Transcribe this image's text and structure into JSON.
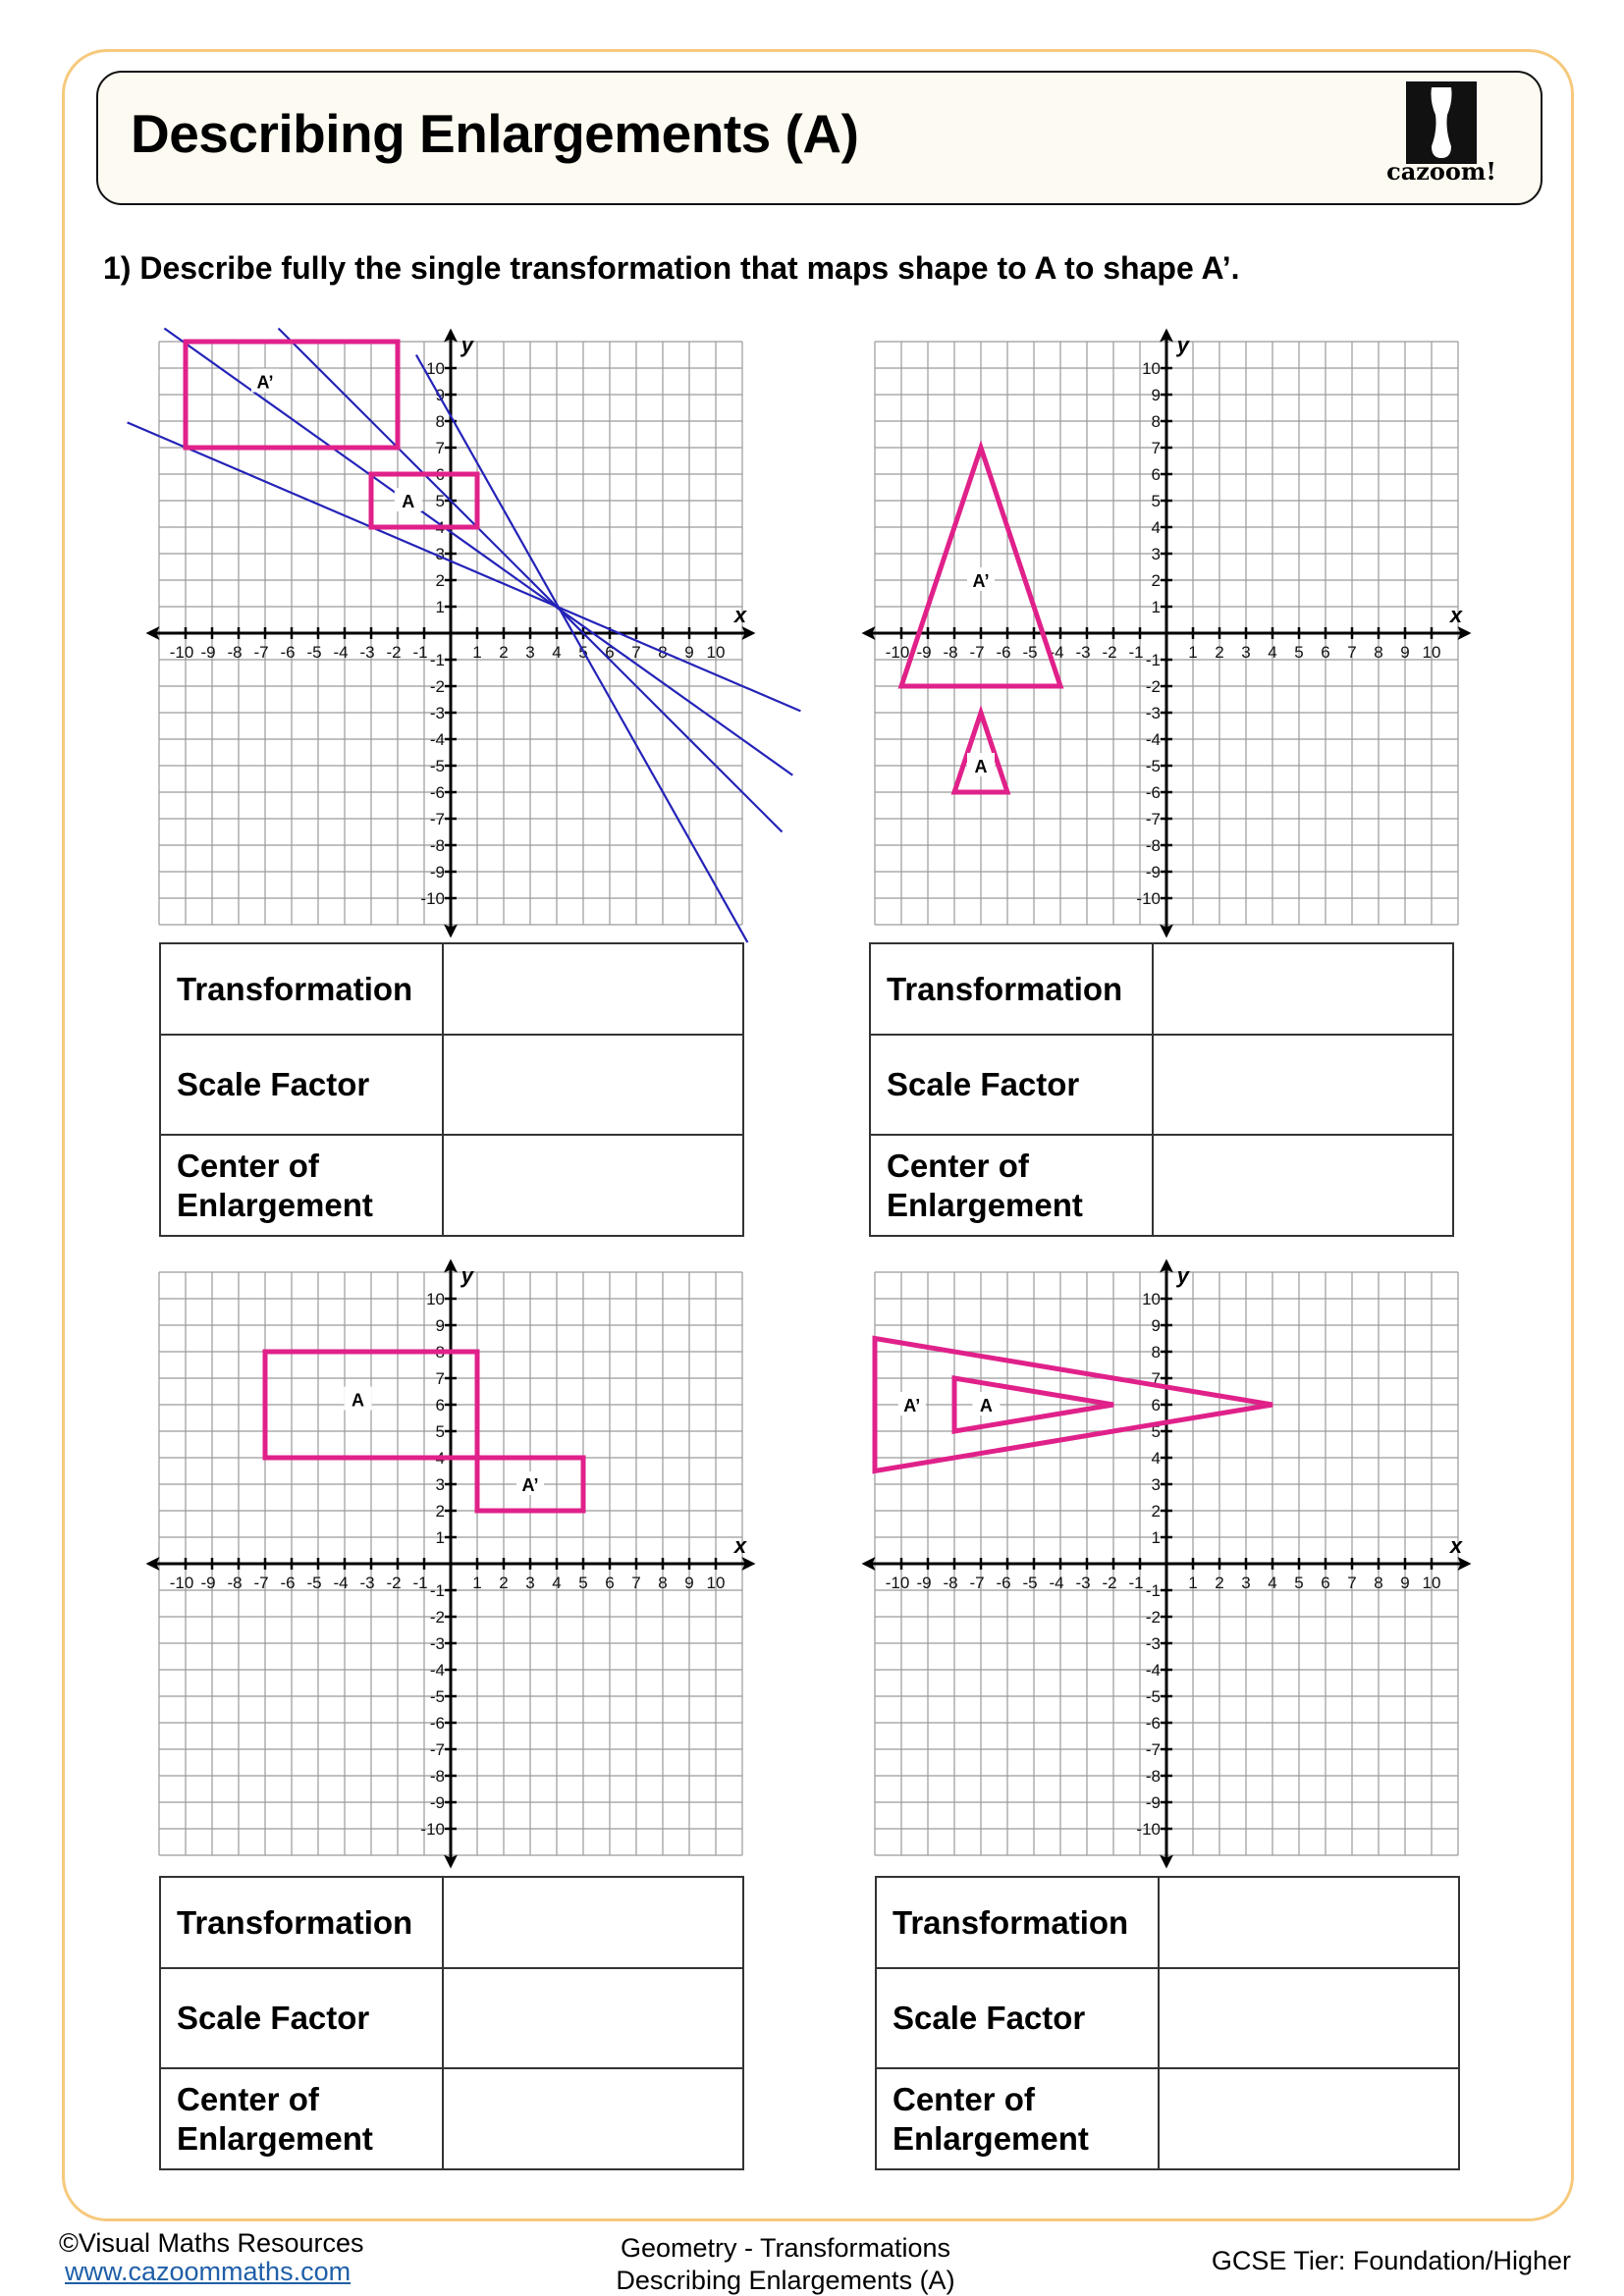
{
  "header": {
    "title": "Describing Enlargements (A)",
    "logo_text": "cazoom!"
  },
  "question": "1)  Describe fully the single transformation that maps shape to A to shape A’.",
  "colors": {
    "shape": "#e0218a",
    "construction_line": "#2323b8",
    "border": "#f6c97c",
    "header_bg": "#fdfaf1"
  },
  "chart_data": [
    {
      "type": "coordinate-grid",
      "xlim": [
        -11,
        11
      ],
      "ylim": [
        -11,
        11
      ],
      "grid": true,
      "axis_labels": {
        "x": "x",
        "y": "y"
      },
      "ticks": [
        -10,
        -9,
        -8,
        -7,
        -6,
        -5,
        -4,
        -3,
        -2,
        -1,
        1,
        2,
        3,
        4,
        5,
        6,
        7,
        8,
        9,
        10
      ],
      "shapes": [
        {
          "name": "A",
          "vertices": [
            [
              -3,
              4
            ],
            [
              1,
              4
            ],
            [
              1,
              6
            ],
            [
              -3,
              6
            ]
          ],
          "label_at": [
            -1.6,
            5
          ]
        },
        {
          "name": "A’",
          "vertices": [
            [
              -10,
              7
            ],
            [
              -2,
              7
            ],
            [
              -2,
              11
            ],
            [
              -10,
              11
            ]
          ],
          "label_at": [
            -7,
            9.5
          ]
        }
      ],
      "construction_lines": [
        {
          "from": [
            -12.2,
            7.95
          ],
          "to": [
            13.2,
            -2.94
          ]
        },
        {
          "from": [
            -10.8,
            11.5
          ],
          "to": [
            12.9,
            -5.36
          ]
        },
        {
          "from": [
            -6.5,
            11.5
          ],
          "to": [
            12.5,
            -7.5
          ]
        },
        {
          "from": [
            -1.3,
            10.5
          ],
          "to": [
            11.2,
            -11.67
          ]
        }
      ]
    },
    {
      "type": "coordinate-grid",
      "xlim": [
        -11,
        11
      ],
      "ylim": [
        -11,
        11
      ],
      "grid": true,
      "axis_labels": {
        "x": "x",
        "y": "y"
      },
      "ticks": [
        -10,
        -9,
        -8,
        -7,
        -6,
        -5,
        -4,
        -3,
        -2,
        -1,
        1,
        2,
        3,
        4,
        5,
        6,
        7,
        8,
        9,
        10
      ],
      "shapes": [
        {
          "name": "A",
          "vertices": [
            [
              -7,
              -3
            ],
            [
              -6,
              -6
            ],
            [
              -8,
              -6
            ]
          ],
          "label_at": [
            -7,
            -5
          ]
        },
        {
          "name": "A’",
          "vertices": [
            [
              -7,
              7
            ],
            [
              -4,
              -2
            ],
            [
              -10,
              -2
            ]
          ],
          "label_at": [
            -7,
            2
          ]
        }
      ],
      "construction_lines": []
    },
    {
      "type": "coordinate-grid",
      "xlim": [
        -11,
        11
      ],
      "ylim": [
        -11,
        11
      ],
      "grid": true,
      "axis_labels": {
        "x": "x",
        "y": "y"
      },
      "ticks": [
        -10,
        -9,
        -8,
        -7,
        -6,
        -5,
        -4,
        -3,
        -2,
        -1,
        1,
        2,
        3,
        4,
        5,
        6,
        7,
        8,
        9,
        10
      ],
      "shapes": [
        {
          "name": "A",
          "vertices": [
            [
              -7,
              4
            ],
            [
              1,
              4
            ],
            [
              1,
              8
            ],
            [
              -7,
              8
            ]
          ],
          "label_at": [
            -3.5,
            6.2
          ]
        },
        {
          "name": "A’",
          "vertices": [
            [
              1,
              2
            ],
            [
              5,
              2
            ],
            [
              5,
              4
            ],
            [
              1,
              4
            ]
          ],
          "label_at": [
            3,
            3
          ]
        }
      ],
      "construction_lines": []
    },
    {
      "type": "coordinate-grid",
      "xlim": [
        -11,
        11
      ],
      "ylim": [
        -11,
        11
      ],
      "grid": true,
      "axis_labels": {
        "x": "x",
        "y": "y"
      },
      "ticks": [
        -10,
        -9,
        -8,
        -7,
        -6,
        -5,
        -4,
        -3,
        -2,
        -1,
        1,
        2,
        3,
        4,
        5,
        6,
        7,
        8,
        9,
        10
      ],
      "shapes": [
        {
          "name": "A",
          "vertices": [
            [
              -8,
              7
            ],
            [
              -2,
              6
            ],
            [
              -8,
              5
            ]
          ],
          "label_at": [
            -6.8,
            6
          ]
        },
        {
          "name": "A’",
          "vertices": [
            [
              -11,
              8.5
            ],
            [
              4,
              6
            ],
            [
              -11,
              3.5
            ]
          ],
          "label_at": [
            -9.6,
            6
          ]
        }
      ],
      "construction_lines": []
    }
  ],
  "answer_table": {
    "rows": [
      "Transformation",
      "Scale Factor",
      "Center of Enlargement"
    ]
  },
  "footer": {
    "copyright": "©Visual Maths Resources",
    "website": "www.cazoommaths.com",
    "topic": "Geometry - Transformations",
    "subtitle": "Describing Enlargements (A)",
    "tier": "GCSE Tier: Foundation/Higher"
  }
}
